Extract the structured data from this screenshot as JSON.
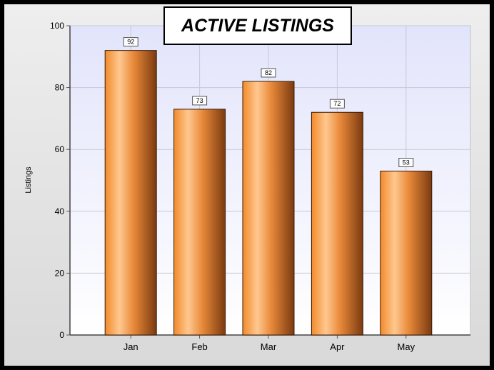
{
  "chart_data": {
    "type": "bar",
    "title": "ACTIVE LISTINGS",
    "xlabel": "",
    "ylabel": "Listings",
    "categories": [
      "Jan",
      "Feb",
      "Mar",
      "Apr",
      "May"
    ],
    "values": [
      92,
      73,
      82,
      72,
      53
    ],
    "ylim": [
      0,
      100
    ],
    "yticks": [
      0,
      20,
      40,
      60,
      80,
      100
    ],
    "grid": true,
    "legend": "none",
    "colors": {
      "bar_light": "#ffc890",
      "bar_mid": "#f28a2a",
      "bar_dark": "#7a3a10",
      "plot_bg_top": "#e2e4fb",
      "plot_bg_bottom": "#ffffff",
      "grid": "#c8c8d8"
    }
  }
}
